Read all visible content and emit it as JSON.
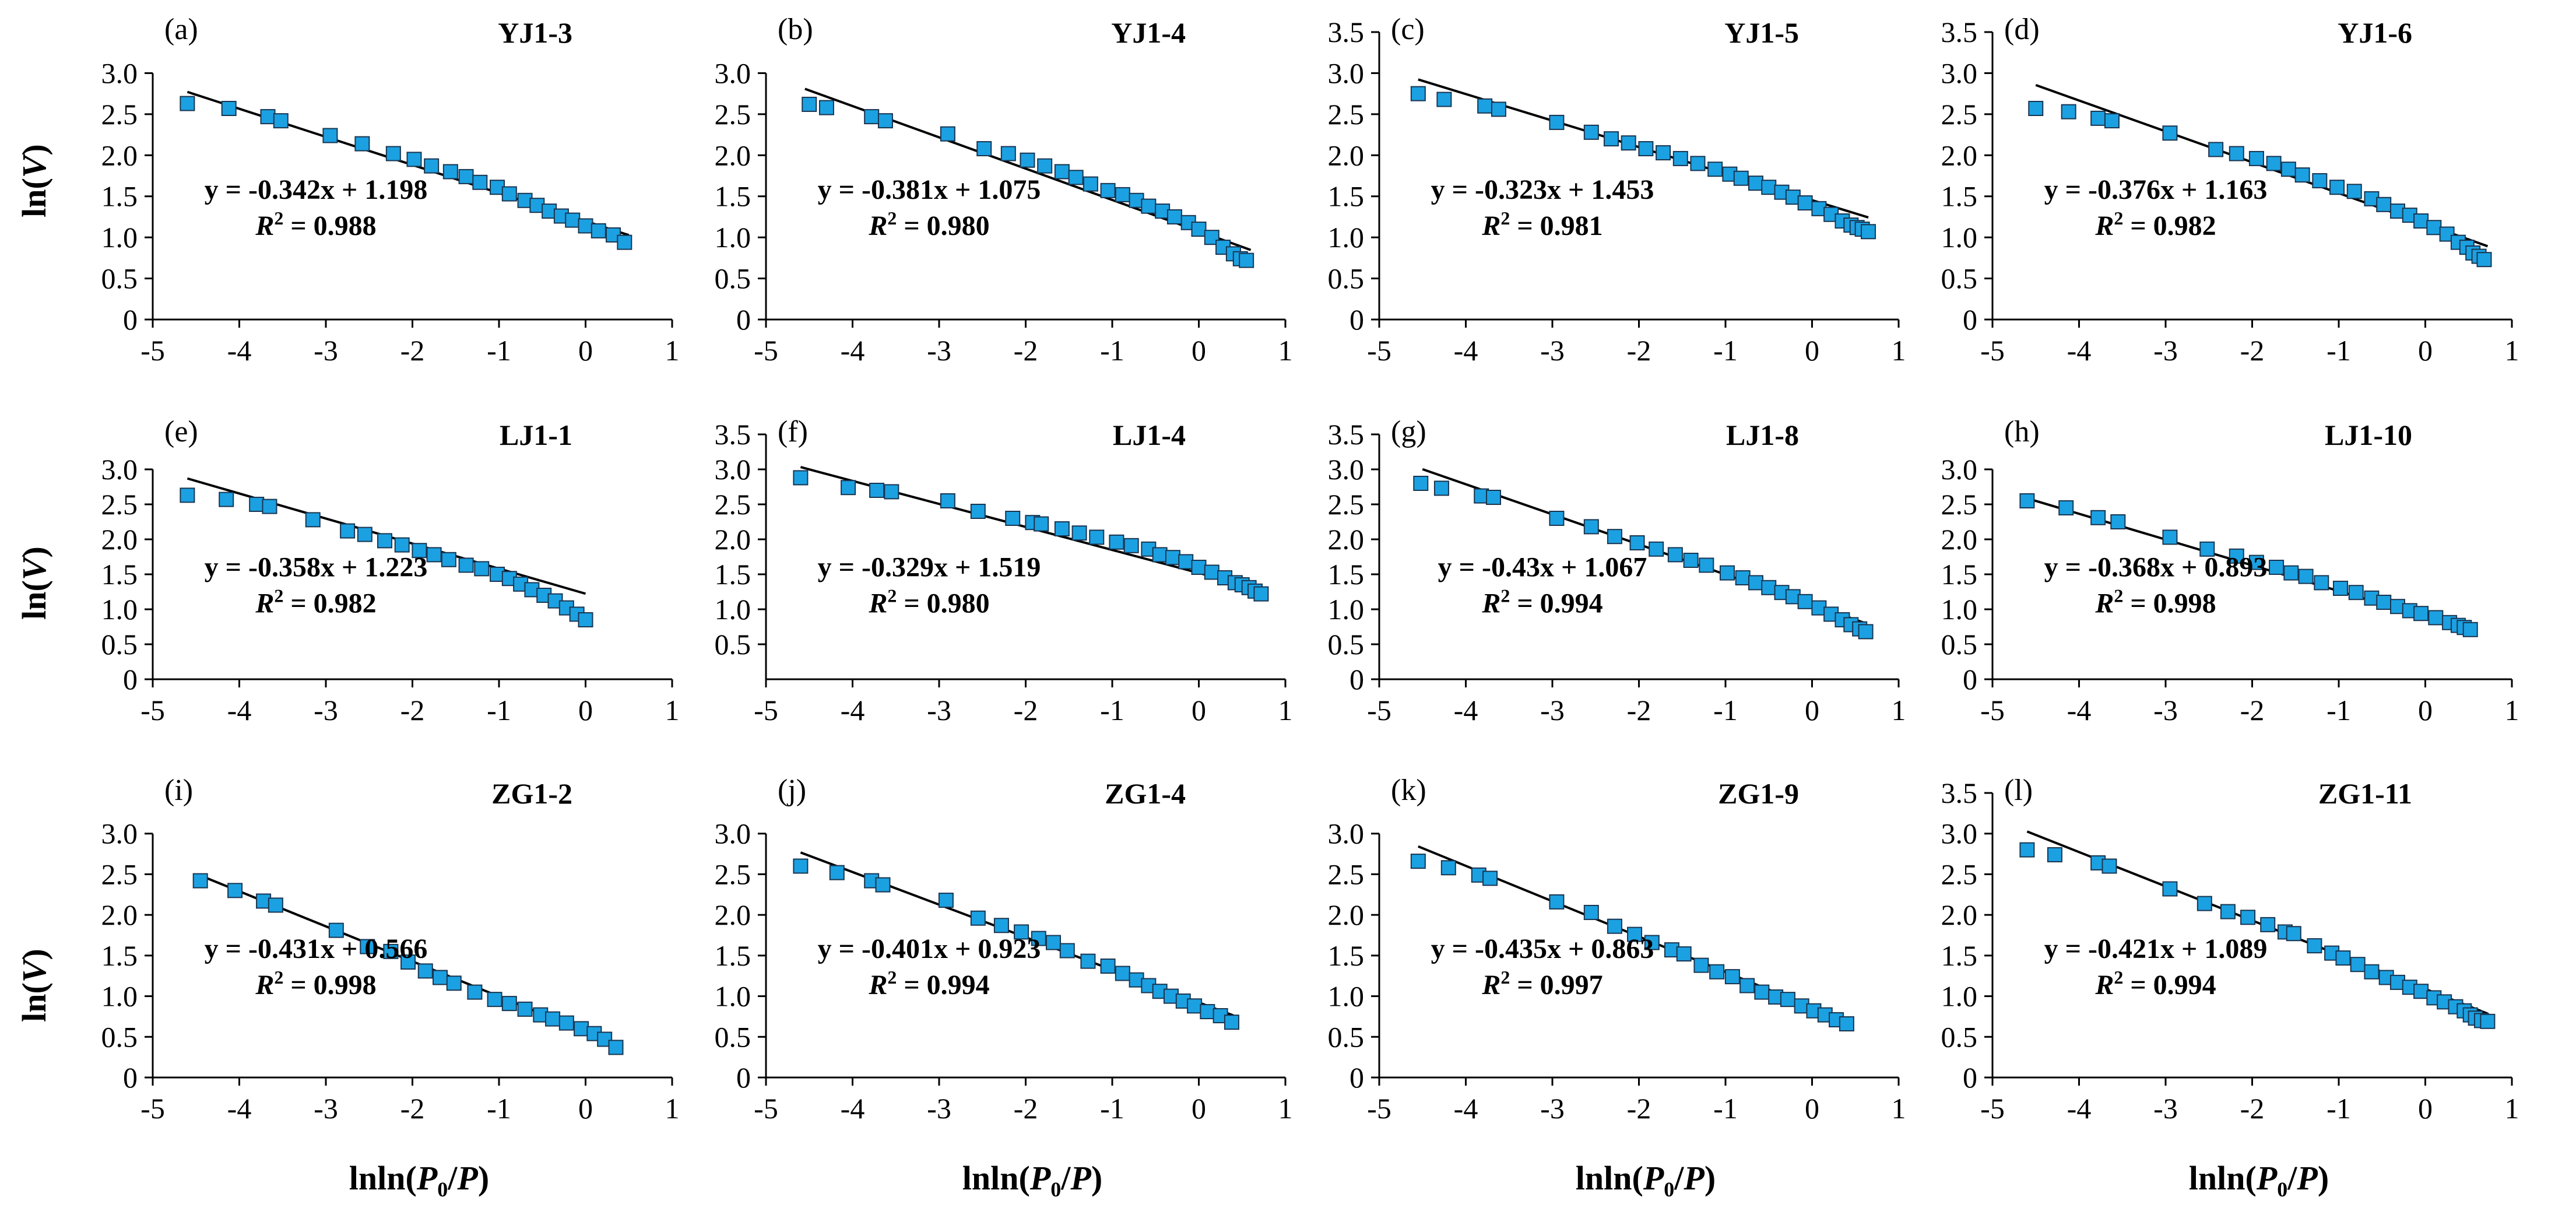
{
  "figure": {
    "ylabel_main": "ln(",
    "ylabel_var": "V",
    "ylabel_close": ")",
    "xlabel_main": "lnln(",
    "xlabel_p0": "P",
    "xlabel_sub": "0",
    "xlabel_mid": "/",
    "xlabel_p": "P",
    "xlabel_close": ")",
    "r2_symbol": "R",
    "r2_sup": "2",
    "r2_eq": " = ",
    "marker_color": "#1ba1e2",
    "marker_stroke": "#1a3550",
    "line_color": "#000000"
  },
  "chart_data": [
    {
      "type": "scatter",
      "label": "(a)",
      "sample": "YJ1-3",
      "xlim": [
        -5,
        1
      ],
      "ylim": [
        0,
        3.0
      ],
      "ytick_labels": [
        "0",
        "0.5",
        "1.0",
        "1.5",
        "2.0",
        "2.5",
        "3.0"
      ],
      "xtick_labels": [
        "-5",
        "-4",
        "-3",
        "-2",
        "-1",
        "0",
        "1"
      ],
      "x": [
        -4.6,
        -4.12,
        -3.67,
        -3.52,
        -2.95,
        -2.58,
        -2.22,
        -1.98,
        -1.78,
        -1.56,
        -1.38,
        -1.22,
        -1.02,
        -0.88,
        -0.7,
        -0.56,
        -0.42,
        -0.28,
        -0.15,
        0.0,
        0.15,
        0.32,
        0.45
      ],
      "y": [
        2.63,
        2.57,
        2.47,
        2.42,
        2.24,
        2.14,
        2.02,
        1.95,
        1.87,
        1.8,
        1.74,
        1.67,
        1.61,
        1.53,
        1.45,
        1.39,
        1.32,
        1.26,
        1.21,
        1.14,
        1.08,
        1.03,
        0.94
      ],
      "fit": {
        "slope": -0.342,
        "intercept": 1.198,
        "x_range": [
          -4.6,
          0.5
        ]
      },
      "equation": "y = -0.342x + 1.198",
      "r2_value": "0.988"
    },
    {
      "type": "scatter",
      "label": "(b)",
      "sample": "YJ1-4",
      "xlim": [
        -5,
        1
      ],
      "ylim": [
        0,
        3.0
      ],
      "ytick_labels": [
        "0",
        "0.5",
        "1.0",
        "1.5",
        "2.0",
        "2.5",
        "3.0"
      ],
      "xtick_labels": [
        "-5",
        "-4",
        "-3",
        "-2",
        "-1",
        "0",
        "1"
      ],
      "x": [
        -4.5,
        -4.3,
        -3.78,
        -3.62,
        -2.9,
        -2.48,
        -2.2,
        -1.98,
        -1.78,
        -1.58,
        -1.42,
        -1.25,
        -1.05,
        -0.88,
        -0.72,
        -0.58,
        -0.42,
        -0.28,
        -0.12,
        0.0,
        0.15,
        0.28,
        0.4,
        0.48,
        0.55
      ],
      "y": [
        2.62,
        2.58,
        2.47,
        2.42,
        2.26,
        2.08,
        2.02,
        1.94,
        1.87,
        1.8,
        1.73,
        1.65,
        1.57,
        1.52,
        1.45,
        1.38,
        1.32,
        1.25,
        1.18,
        1.1,
        1.0,
        0.88,
        0.8,
        0.74,
        0.72
      ],
      "fit": {
        "slope": -0.381,
        "intercept": 1.075,
        "x_range": [
          -4.55,
          0.6
        ]
      },
      "equation": "y = -0.381x + 1.075",
      "r2_value": "0.980"
    },
    {
      "type": "scatter",
      "label": "(c)",
      "sample": "YJ1-5",
      "xlim": [
        -5,
        1
      ],
      "ylim": [
        0,
        3.5
      ],
      "ytick_labels": [
        "0",
        "0.5",
        "1.0",
        "1.5",
        "2.0",
        "2.5",
        "3.0",
        "3.5"
      ],
      "xtick_labels": [
        "-5",
        "-4",
        "-3",
        "-2",
        "-1",
        "0",
        "1"
      ],
      "x": [
        -4.55,
        -4.25,
        -3.78,
        -3.62,
        -2.95,
        -2.55,
        -2.32,
        -2.12,
        -1.92,
        -1.72,
        -1.52,
        -1.32,
        -1.12,
        -0.95,
        -0.82,
        -0.65,
        -0.5,
        -0.35,
        -0.22,
        -0.08,
        0.08,
        0.22,
        0.35,
        0.45,
        0.52,
        0.58,
        0.65
      ],
      "y": [
        2.75,
        2.68,
        2.6,
        2.56,
        2.4,
        2.28,
        2.2,
        2.15,
        2.08,
        2.03,
        1.96,
        1.9,
        1.83,
        1.77,
        1.72,
        1.66,
        1.61,
        1.55,
        1.49,
        1.42,
        1.35,
        1.28,
        1.2,
        1.15,
        1.12,
        1.1,
        1.07
      ],
      "fit": {
        "slope": -0.323,
        "intercept": 1.453,
        "x_range": [
          -4.55,
          0.65
        ]
      },
      "equation": "y = -0.323x + 1.453",
      "r2_value": "0.981"
    },
    {
      "type": "scatter",
      "label": "(d)",
      "sample": "YJ1-6",
      "xlim": [
        -5,
        1
      ],
      "ylim": [
        0,
        3.5
      ],
      "ytick_labels": [
        "0",
        "0.5",
        "1.0",
        "1.5",
        "2.0",
        "2.5",
        "3.0",
        "3.5"
      ],
      "xtick_labels": [
        "-5",
        "-4",
        "-3",
        "-2",
        "-1",
        "0",
        "1"
      ],
      "x": [
        -4.5,
        -4.12,
        -3.78,
        -3.62,
        -2.95,
        -2.42,
        -2.18,
        -1.95,
        -1.75,
        -1.58,
        -1.42,
        -1.22,
        -1.02,
        -0.82,
        -0.62,
        -0.48,
        -0.32,
        -0.18,
        -0.05,
        0.1,
        0.25,
        0.38,
        0.48,
        0.55,
        0.62,
        0.68
      ],
      "y": [
        2.57,
        2.53,
        2.45,
        2.42,
        2.27,
        2.07,
        2.02,
        1.96,
        1.9,
        1.83,
        1.76,
        1.69,
        1.61,
        1.56,
        1.47,
        1.4,
        1.32,
        1.27,
        1.2,
        1.12,
        1.04,
        0.94,
        0.88,
        0.81,
        0.77,
        0.73
      ],
      "fit": {
        "slope": -0.376,
        "intercept": 1.163,
        "x_range": [
          -4.5,
          0.72
        ]
      },
      "equation": "y = -0.376x + 1.163",
      "r2_value": "0.982"
    },
    {
      "type": "scatter",
      "label": "(e)",
      "sample": "LJ1-1",
      "xlim": [
        -5,
        1
      ],
      "ylim": [
        0,
        3.0
      ],
      "ytick_labels": [
        "0",
        "0.5",
        "1.0",
        "1.5",
        "2.0",
        "2.5",
        "3.0"
      ],
      "xtick_labels": [
        "-5",
        "-4",
        "-3",
        "-2",
        "-1",
        "0",
        "1"
      ],
      "x": [
        -4.6,
        -4.15,
        -3.8,
        -3.65,
        -3.15,
        -2.75,
        -2.55,
        -2.32,
        -2.12,
        -1.92,
        -1.75,
        -1.58,
        -1.38,
        -1.2,
        -1.02,
        -0.88,
        -0.75,
        -0.62,
        -0.48,
        -0.35,
        -0.22,
        -0.1,
        0.0
      ],
      "y": [
        2.63,
        2.57,
        2.5,
        2.47,
        2.28,
        2.12,
        2.07,
        1.98,
        1.92,
        1.84,
        1.78,
        1.71,
        1.63,
        1.58,
        1.5,
        1.44,
        1.36,
        1.28,
        1.2,
        1.12,
        1.02,
        0.93,
        0.85
      ],
      "fit": {
        "slope": -0.358,
        "intercept": 1.223,
        "x_range": [
          -4.6,
          0.0
        ]
      },
      "equation": "y = -0.358x + 1.223",
      "r2_value": "0.982"
    },
    {
      "type": "scatter",
      "label": "(f)",
      "sample": "LJ1-4",
      "xlim": [
        -5,
        1
      ],
      "ylim": [
        0,
        3.5
      ],
      "ytick_labels": [
        "0.5",
        "1.0",
        "1.5",
        "2.0",
        "2.5",
        "3.0",
        "3.5"
      ],
      "xtick_labels": [
        "-5",
        "-4",
        "-3",
        "-2",
        "-1",
        "0",
        "1"
      ],
      "x": [
        -4.6,
        -4.05,
        -3.72,
        -3.55,
        -2.9,
        -2.55,
        -2.15,
        -1.92,
        -1.82,
        -1.58,
        -1.38,
        -1.18,
        -0.95,
        -0.78,
        -0.58,
        -0.45,
        -0.3,
        -0.15,
        0.0,
        0.15,
        0.3,
        0.42,
        0.5,
        0.58,
        0.65,
        0.72
      ],
      "y": [
        2.88,
        2.74,
        2.7,
        2.68,
        2.55,
        2.4,
        2.3,
        2.24,
        2.22,
        2.15,
        2.09,
        2.03,
        1.96,
        1.91,
        1.86,
        1.78,
        1.74,
        1.68,
        1.6,
        1.53,
        1.45,
        1.38,
        1.35,
        1.31,
        1.26,
        1.22
      ],
      "fit": {
        "slope": -0.329,
        "intercept": 1.519,
        "x_range": [
          -4.6,
          0.72
        ]
      },
      "equation": "y = -0.329x + 1.519",
      "r2_value": "0.980"
    },
    {
      "type": "scatter",
      "label": "(g)",
      "sample": "LJ1-8",
      "xlim": [
        -5,
        1
      ],
      "ylim": [
        0,
        3.5
      ],
      "ytick_labels": [
        "0",
        "0.5",
        "1.0",
        "1.5",
        "2.0",
        "2.5",
        "3.0",
        "3.5"
      ],
      "xtick_labels": [
        "-5",
        "-4",
        "-3",
        "-2",
        "-1",
        "0",
        "1"
      ],
      "x": [
        -4.52,
        -4.28,
        -3.82,
        -3.68,
        -2.95,
        -2.55,
        -2.28,
        -2.02,
        -1.8,
        -1.58,
        -1.4,
        -1.22,
        -0.98,
        -0.8,
        -0.65,
        -0.5,
        -0.35,
        -0.22,
        -0.08,
        0.08,
        0.22,
        0.35,
        0.45,
        0.55,
        0.62
      ],
      "y": [
        2.8,
        2.73,
        2.62,
        2.6,
        2.3,
        2.18,
        2.04,
        1.95,
        1.86,
        1.78,
        1.7,
        1.63,
        1.52,
        1.45,
        1.38,
        1.31,
        1.24,
        1.18,
        1.11,
        1.02,
        0.93,
        0.85,
        0.78,
        0.72,
        0.68
      ],
      "fit": {
        "slope": -0.43,
        "intercept": 1.067,
        "x_range": [
          -4.5,
          0.62
        ]
      },
      "equation": "y = -0.43x + 1.067",
      "r2_value": "0.994"
    },
    {
      "type": "scatter",
      "label": "(h)",
      "sample": "LJ1-10",
      "xlim": [
        -5,
        1
      ],
      "ylim": [
        0,
        3.0
      ],
      "ytick_labels": [
        "0",
        "0.5",
        "1.0",
        "1.5",
        "2.0",
        "2.5",
        "3.0"
      ],
      "xtick_labels": [
        "-5",
        "-4",
        "-3",
        "-2",
        "-1",
        "0",
        "1"
      ],
      "x": [
        -4.6,
        -4.15,
        -3.78,
        -3.55,
        -2.95,
        -2.52,
        -2.18,
        -1.95,
        -1.72,
        -1.55,
        -1.38,
        -1.2,
        -0.98,
        -0.8,
        -0.62,
        -0.48,
        -0.32,
        -0.18,
        -0.05,
        0.12,
        0.28,
        0.38,
        0.45,
        0.52
      ],
      "y": [
        2.55,
        2.45,
        2.31,
        2.25,
        2.03,
        1.86,
        1.76,
        1.67,
        1.6,
        1.52,
        1.47,
        1.38,
        1.3,
        1.24,
        1.16,
        1.1,
        1.04,
        0.98,
        0.94,
        0.88,
        0.81,
        0.77,
        0.74,
        0.71
      ],
      "fit": {
        "slope": -0.368,
        "intercept": 0.893,
        "x_range": [
          -4.6,
          0.55
        ]
      },
      "equation": "y = -0.368x + 0.893",
      "r2_value": "0.998"
    },
    {
      "type": "scatter",
      "label": "(i)",
      "sample": "ZG1-2",
      "xlim": [
        -5,
        1
      ],
      "ylim": [
        0,
        3.0
      ],
      "ytick_labels": [
        "0",
        "0.5",
        "1.0",
        "1.5",
        "2.0",
        "2.5",
        "3.0"
      ],
      "xtick_labels": [
        "-5",
        "-4",
        "-3",
        "-2",
        "-1",
        "0",
        "1"
      ],
      "x": [
        -4.45,
        -4.05,
        -3.72,
        -3.58,
        -2.88,
        -2.52,
        -2.25,
        -2.05,
        -1.85,
        -1.68,
        -1.52,
        -1.28,
        -1.05,
        -0.88,
        -0.7,
        -0.52,
        -0.38,
        -0.22,
        -0.05,
        0.1,
        0.22,
        0.35
      ],
      "y": [
        2.42,
        2.3,
        2.17,
        2.12,
        1.81,
        1.61,
        1.55,
        1.42,
        1.31,
        1.23,
        1.16,
        1.05,
        0.96,
        0.91,
        0.84,
        0.77,
        0.72,
        0.67,
        0.6,
        0.54,
        0.47,
        0.37
      ],
      "fit": {
        "slope": -0.431,
        "intercept": 0.566,
        "x_range": [
          -4.45,
          0.4
        ]
      },
      "equation": "y = -0.431x + 0.566",
      "r2_value": "0.998"
    },
    {
      "type": "scatter",
      "label": "(j)",
      "sample": "ZG1-4",
      "xlim": [
        -5,
        1
      ],
      "ylim": [
        0,
        3.0
      ],
      "ytick_labels": [
        "0",
        "0.5",
        "1.0",
        "1.5",
        "2.0",
        "2.5",
        "3.0"
      ],
      "xtick_labels": [
        "-5",
        "-4",
        "-3",
        "-2",
        "-1",
        "0",
        "1"
      ],
      "x": [
        -4.6,
        -4.18,
        -3.78,
        -3.65,
        -2.92,
        -2.55,
        -2.28,
        -2.05,
        -1.85,
        -1.68,
        -1.52,
        -1.28,
        -1.05,
        -0.88,
        -0.72,
        -0.58,
        -0.45,
        -0.32,
        -0.18,
        -0.05,
        0.1,
        0.25,
        0.38
      ],
      "y": [
        2.6,
        2.52,
        2.42,
        2.37,
        2.18,
        1.96,
        1.87,
        1.79,
        1.71,
        1.66,
        1.56,
        1.43,
        1.37,
        1.28,
        1.2,
        1.13,
        1.06,
        1.0,
        0.94,
        0.88,
        0.81,
        0.76,
        0.68
      ],
      "fit": {
        "slope": -0.401,
        "intercept": 0.923,
        "x_range": [
          -4.6,
          0.4
        ]
      },
      "equation": "y = -0.401x + 0.923",
      "r2_value": "0.994"
    },
    {
      "type": "scatter",
      "label": "(k)",
      "sample": "ZG1-9",
      "xlim": [
        -5,
        1
      ],
      "ylim": [
        0,
        3.0
      ],
      "ytick_labels": [
        "0",
        "0.5",
        "1.0",
        "1.5",
        "2.0",
        "2.5",
        "3.0"
      ],
      "xtick_labels": [
        "-5",
        "-4",
        "-3",
        "-2",
        "-1",
        "0",
        "1"
      ],
      "x": [
        -4.55,
        -4.2,
        -3.85,
        -3.72,
        -2.95,
        -2.55,
        -2.28,
        -2.05,
        -1.85,
        -1.62,
        -1.48,
        -1.28,
        -1.1,
        -0.92,
        -0.75,
        -0.58,
        -0.42,
        -0.28,
        -0.12,
        0.02,
        0.15,
        0.28,
        0.4
      ],
      "y": [
        2.66,
        2.58,
        2.49,
        2.45,
        2.16,
        2.03,
        1.86,
        1.76,
        1.66,
        1.57,
        1.52,
        1.38,
        1.3,
        1.24,
        1.13,
        1.05,
        0.99,
        0.96,
        0.88,
        0.82,
        0.77,
        0.71,
        0.66
      ],
      "fit": {
        "slope": -0.435,
        "intercept": 0.863,
        "x_range": [
          -4.55,
          0.45
        ]
      },
      "equation": "y = -0.435x + 0.863",
      "r2_value": "0.997"
    },
    {
      "type": "scatter",
      "label": "(l)",
      "sample": "ZG1-11",
      "xlim": [
        -5,
        1
      ],
      "ylim": [
        0,
        3.5
      ],
      "ytick_labels": [
        "0",
        "0.5",
        "1.0",
        "1.5",
        "2.0",
        "2.5",
        "3.0",
        "3.5"
      ],
      "xtick_labels": [
        "-5",
        "-4",
        "-3",
        "-2",
        "-1",
        "0",
        "1"
      ],
      "x": [
        -4.6,
        -4.28,
        -3.78,
        -3.65,
        -2.95,
        -2.55,
        -2.28,
        -2.05,
        -1.82,
        -1.62,
        -1.52,
        -1.28,
        -1.08,
        -0.95,
        -0.78,
        -0.62,
        -0.45,
        -0.32,
        -0.18,
        -0.05,
        0.1,
        0.22,
        0.35,
        0.45,
        0.52,
        0.58,
        0.65,
        0.72
      ],
      "y": [
        2.8,
        2.74,
        2.64,
        2.6,
        2.32,
        2.14,
        2.04,
        1.97,
        1.88,
        1.79,
        1.77,
        1.62,
        1.53,
        1.47,
        1.39,
        1.3,
        1.23,
        1.17,
        1.11,
        1.06,
        0.98,
        0.93,
        0.87,
        0.82,
        0.77,
        0.73,
        0.7,
        0.69
      ],
      "fit": {
        "slope": -0.421,
        "intercept": 1.089,
        "x_range": [
          -4.6,
          0.72
        ]
      },
      "equation": "y = -0.421x + 1.089",
      "r2_value": "0.994"
    }
  ]
}
